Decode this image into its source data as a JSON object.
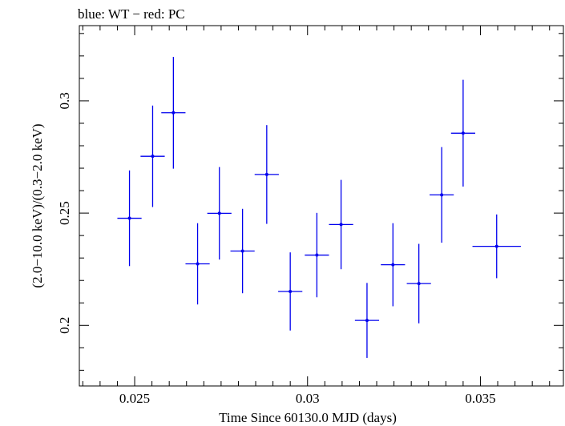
{
  "chart_data": {
    "type": "scatter",
    "title": "blue: WT − red: PC",
    "xlabel": "Time Since 60130.0 MJD (days)",
    "ylabel": "(2.0−10.0 keV)/(0.3−2.0 keV)",
    "xlim": [
      0.0234,
      0.0374
    ],
    "ylim": [
      0.173,
      0.3335
    ],
    "x_ticks": [
      {
        "value": 0.025,
        "label": "0.025"
      },
      {
        "value": 0.03,
        "label": "0.03"
      },
      {
        "value": 0.035,
        "label": "0.035"
      }
    ],
    "y_ticks": [
      {
        "value": 0.2,
        "label": "0.2"
      },
      {
        "value": 0.25,
        "label": "0.25"
      },
      {
        "value": 0.3,
        "label": "0.3"
      }
    ],
    "grid": false,
    "colors": {
      "series": "#0000ee",
      "axes": "#000000"
    },
    "series": [
      {
        "color": "#0000ee",
        "points": [
          {
            "x": 0.02485,
            "xerr": 0.00035,
            "y": 0.2477,
            "yerr": 0.0213
          },
          {
            "x": 0.02552,
            "xerr": 0.00035,
            "y": 0.2753,
            "yerr": 0.0226
          },
          {
            "x": 0.02612,
            "xerr": 0.00035,
            "y": 0.2947,
            "yerr": 0.0249
          },
          {
            "x": 0.02682,
            "xerr": 0.00035,
            "y": 0.2274,
            "yerr": 0.0181
          },
          {
            "x": 0.02745,
            "xerr": 0.00035,
            "y": 0.2499,
            "yerr": 0.0206
          },
          {
            "x": 0.02812,
            "xerr": 0.00035,
            "y": 0.2331,
            "yerr": 0.0188
          },
          {
            "x": 0.02882,
            "xerr": 0.00035,
            "y": 0.2672,
            "yerr": 0.022
          },
          {
            "x": 0.0295,
            "xerr": 0.00035,
            "y": 0.2151,
            "yerr": 0.0174
          },
          {
            "x": 0.03027,
            "xerr": 0.00035,
            "y": 0.2313,
            "yerr": 0.0188
          },
          {
            "x": 0.03097,
            "xerr": 0.00035,
            "y": 0.2449,
            "yerr": 0.0199
          },
          {
            "x": 0.03172,
            "xerr": 0.00035,
            "y": 0.2022,
            "yerr": 0.0167
          },
          {
            "x": 0.03247,
            "xerr": 0.00035,
            "y": 0.227,
            "yerr": 0.0185
          },
          {
            "x": 0.03322,
            "xerr": 0.00035,
            "y": 0.2186,
            "yerr": 0.0177
          },
          {
            "x": 0.03388,
            "xerr": 0.00035,
            "y": 0.2581,
            "yerr": 0.0213
          },
          {
            "x": 0.0345,
            "xerr": 0.00035,
            "y": 0.2856,
            "yerr": 0.0238
          },
          {
            "x": 0.03547,
            "xerr": 0.0007,
            "y": 0.2352,
            "yerr": 0.0142
          }
        ]
      }
    ]
  }
}
